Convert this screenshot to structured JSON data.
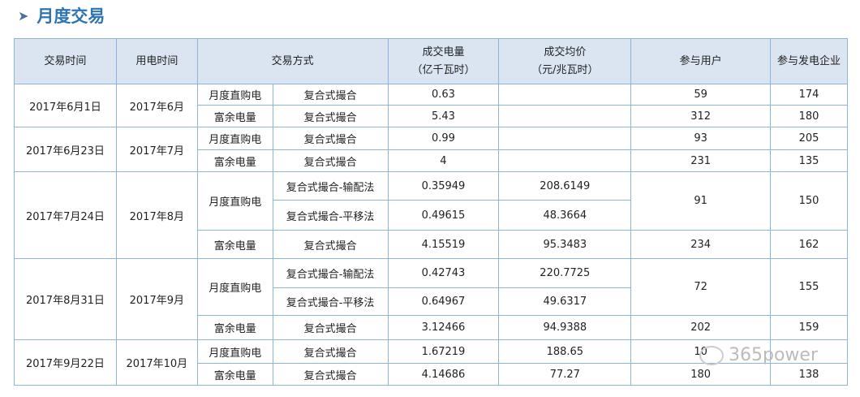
{
  "title": "月度交易",
  "headers": {
    "trade_time": "交易时间",
    "use_time": "用电时间",
    "method": "交易方式",
    "volume": "成交电量",
    "volume_unit": "（亿千瓦时）",
    "price": "成交均价",
    "price_unit": "（元/兆瓦时）",
    "users": "参与用户",
    "gens": "参与发电企业"
  },
  "rows": [
    {
      "trade_time": "2017年6月1日",
      "use_time": "2017年6月",
      "type": "月度直购电",
      "mode": "复合式撮合",
      "volume": "0.63",
      "price": "",
      "users": "59",
      "gens": "174"
    },
    {
      "type": "富余电量",
      "mode": "复合式撮合",
      "volume": "5.43",
      "price": "",
      "users": "312",
      "gens": "180"
    },
    {
      "trade_time": "2017年6月23日",
      "use_time": "2017年7月",
      "type": "月度直购电",
      "mode": "复合式撮合",
      "volume": "0.99",
      "price": "",
      "users": "93",
      "gens": "205"
    },
    {
      "type": "富余电量",
      "mode": "复合式撮合",
      "volume": "4",
      "price": "",
      "users": "231",
      "gens": "135"
    },
    {
      "trade_time": "2017年7月24日",
      "use_time": "2017年8月",
      "type": "月度直购电",
      "mode": "复合式撮合-输配法",
      "volume": "0.35949",
      "price": "208.6149",
      "users": "91",
      "gens": "150"
    },
    {
      "mode": "复合式撮合-平移法",
      "volume": "0.49615",
      "price": "48.3664"
    },
    {
      "type": "富余电量",
      "mode": "复合式撮合",
      "volume": "4.15519",
      "price": "95.3483",
      "users": "234",
      "gens": "162"
    },
    {
      "trade_time": "2017年8月31日",
      "use_time": "2017年9月",
      "type": "月度直购电",
      "mode": "复合式撮合-输配法",
      "volume": "0.42743",
      "price": "220.7725",
      "users": "72",
      "gens": "155"
    },
    {
      "mode": "复合式撮合-平移法",
      "volume": "0.64967",
      "price": "49.6317"
    },
    {
      "type": "富余电量",
      "mode": "复合式撮合",
      "volume": "3.12466",
      "price": "94.9388",
      "users": "202",
      "gens": "159"
    },
    {
      "trade_time": "2017年9月22日",
      "use_time": "2017年10月",
      "type": "月度直购电",
      "mode": "复合式撮合",
      "volume": "1.67219",
      "price": "188.65",
      "users": "10",
      "gens": ""
    },
    {
      "type": "富余电量",
      "mode": "复合式撮合",
      "volume": "4.14686",
      "price": "77.27",
      "users": "180",
      "gens": "138"
    }
  ],
  "watermark": "365power"
}
